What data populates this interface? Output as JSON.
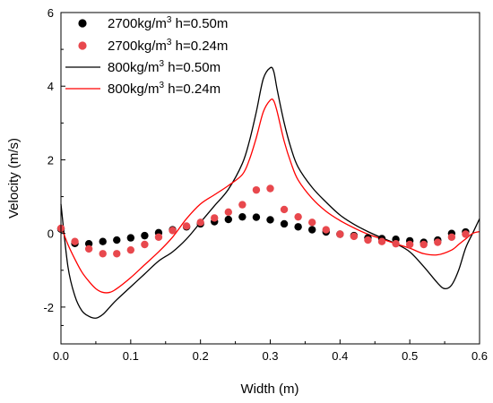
{
  "chart_data": {
    "type": "line",
    "title": "",
    "xlabel": "Width (m)",
    "ylabel": "Velocity (m/s)",
    "xlim": [
      0.0,
      0.6
    ],
    "ylim": [
      -3,
      6
    ],
    "x_ticks": [
      "0.0",
      "0.1",
      "0.2",
      "0.3",
      "0.4",
      "0.5",
      "0.6"
    ],
    "y_ticks": [
      "-2",
      "0",
      "2",
      "4",
      "6"
    ],
    "x_tick_values": [
      0.0,
      0.1,
      0.2,
      0.3,
      0.4,
      0.5,
      0.6
    ],
    "y_tick_values": [
      -2,
      0,
      2,
      4,
      6
    ],
    "grid": false,
    "legend_position": "top-left",
    "series": [
      {
        "name": "2700kg/m³ h=0.50m",
        "legend_parts": {
          "main": "2700kg/m",
          "sup": "3",
          "rest": " h=0.50m"
        },
        "style": "markers",
        "color": "#000000",
        "x": [
          0.0,
          0.02,
          0.04,
          0.06,
          0.08,
          0.1,
          0.12,
          0.14,
          0.16,
          0.18,
          0.2,
          0.22,
          0.24,
          0.26,
          0.28,
          0.3,
          0.32,
          0.34,
          0.36,
          0.38,
          0.4,
          0.42,
          0.44,
          0.46,
          0.48,
          0.5,
          0.52,
          0.54,
          0.56,
          0.58
        ],
        "y": [
          0.12,
          -0.27,
          -0.28,
          -0.22,
          -0.18,
          -0.12,
          -0.06,
          0.02,
          0.1,
          0.18,
          0.26,
          0.32,
          0.38,
          0.45,
          0.44,
          0.37,
          0.26,
          0.18,
          0.1,
          0.04,
          -0.02,
          -0.06,
          -0.12,
          -0.14,
          -0.16,
          -0.2,
          -0.24,
          -0.18,
          0.0,
          0.04
        ]
      },
      {
        "name": "2700kg/m³ h=0.24m",
        "legend_parts": {
          "main": "2700kg/m",
          "sup": "3",
          "rest": " h=0.24m"
        },
        "style": "markers",
        "color": "#e8484d",
        "x": [
          0.0,
          0.02,
          0.04,
          0.06,
          0.08,
          0.1,
          0.12,
          0.14,
          0.16,
          0.18,
          0.2,
          0.22,
          0.24,
          0.26,
          0.28,
          0.3,
          0.32,
          0.34,
          0.36,
          0.38,
          0.4,
          0.42,
          0.44,
          0.46,
          0.48,
          0.5,
          0.52,
          0.54,
          0.56,
          0.58
        ],
        "y": [
          0.14,
          -0.22,
          -0.42,
          -0.55,
          -0.55,
          -0.45,
          -0.3,
          -0.1,
          0.08,
          0.2,
          0.3,
          0.42,
          0.58,
          0.78,
          1.18,
          1.22,
          0.65,
          0.45,
          0.3,
          0.1,
          -0.02,
          -0.08,
          -0.18,
          -0.22,
          -0.28,
          -0.3,
          -0.3,
          -0.24,
          -0.1,
          -0.02
        ]
      },
      {
        "name": "800kg/m³  h=0.50m",
        "legend_parts": {
          "main": "800kg/m",
          "sup": "3",
          "rest": "  h=0.50m"
        },
        "style": "line",
        "color": "#000000",
        "x": [
          0.0,
          0.01,
          0.02,
          0.03,
          0.04,
          0.05,
          0.06,
          0.07,
          0.08,
          0.1,
          0.12,
          0.14,
          0.16,
          0.18,
          0.2,
          0.22,
          0.24,
          0.26,
          0.27,
          0.28,
          0.29,
          0.3,
          0.305,
          0.31,
          0.32,
          0.33,
          0.34,
          0.36,
          0.38,
          0.4,
          0.42,
          0.44,
          0.46,
          0.48,
          0.5,
          0.52,
          0.54,
          0.55,
          0.56,
          0.57,
          0.58,
          0.59,
          0.6
        ],
        "y": [
          0.8,
          -0.9,
          -1.7,
          -2.1,
          -2.25,
          -2.3,
          -2.2,
          -2.0,
          -1.8,
          -1.45,
          -1.1,
          -0.75,
          -0.5,
          -0.15,
          0.3,
          0.75,
          1.2,
          1.9,
          2.5,
          3.3,
          4.2,
          4.5,
          4.4,
          3.9,
          3.0,
          2.3,
          1.8,
          1.25,
          0.85,
          0.5,
          0.25,
          0.05,
          -0.12,
          -0.28,
          -0.5,
          -0.9,
          -1.35,
          -1.5,
          -1.4,
          -1.0,
          -0.4,
          0.0,
          0.4
        ]
      },
      {
        "name": "800kg/m³  h=0.24m",
        "legend_parts": {
          "main": "800kg/m",
          "sup": "3",
          "rest": "  h=0.24m"
        },
        "style": "line",
        "color": "#ff0000",
        "x": [
          0.0,
          0.01,
          0.02,
          0.03,
          0.04,
          0.05,
          0.06,
          0.07,
          0.08,
          0.1,
          0.12,
          0.14,
          0.16,
          0.18,
          0.2,
          0.22,
          0.24,
          0.26,
          0.27,
          0.28,
          0.29,
          0.3,
          0.305,
          0.31,
          0.32,
          0.33,
          0.34,
          0.36,
          0.38,
          0.4,
          0.42,
          0.44,
          0.46,
          0.48,
          0.5,
          0.52,
          0.54,
          0.56,
          0.57,
          0.58,
          0.59,
          0.6
        ],
        "y": [
          0.2,
          -0.3,
          -0.7,
          -1.05,
          -1.3,
          -1.5,
          -1.6,
          -1.6,
          -1.5,
          -1.2,
          -0.85,
          -0.5,
          -0.1,
          0.4,
          0.8,
          1.05,
          1.3,
          1.6,
          2.0,
          2.6,
          3.3,
          3.62,
          3.6,
          3.3,
          2.5,
          1.9,
          1.45,
          0.95,
          0.6,
          0.35,
          0.15,
          -0.02,
          -0.15,
          -0.28,
          -0.4,
          -0.55,
          -0.58,
          -0.45,
          -0.3,
          -0.15,
          0.0,
          0.05
        ]
      }
    ]
  }
}
